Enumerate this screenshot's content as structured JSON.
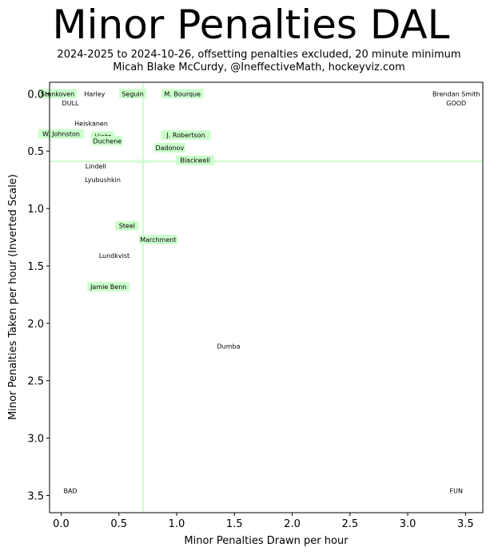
{
  "chart_data": {
    "type": "scatter",
    "title": "Minor Penalties DAL",
    "subtitle_lines": [
      "2024-2025 to 2024-10-26, offsetting penalties excluded, 20 minute minimum",
      "Micah Blake McCurdy, @IneffectiveMath, hockeyviz.com"
    ],
    "xlabel": "Minor Penalties Drawn per hour",
    "ylabel": "Minor Penalties Taken per hour (Inverted Scale)",
    "xlim": [
      -0.1,
      3.65
    ],
    "ylim": [
      3.65,
      -0.1
    ],
    "y_inverted": true,
    "xticks": [
      "0.0",
      "0.5",
      "1.0",
      "1.5",
      "2.0",
      "2.5",
      "3.0",
      "3.5"
    ],
    "yticks": [
      "0.0",
      "0.5",
      "1.0",
      "1.5",
      "2.0",
      "2.5",
      "3.0",
      "3.5"
    ],
    "team_reference": {
      "label": "DAL",
      "x": 0.71,
      "y": 0.59,
      "color": "#ccffcc"
    },
    "highlight_color": "#ccffcc",
    "points": [
      {
        "name": "Stankoven",
        "x": -0.03,
        "y": 0.0,
        "highlight": true
      },
      {
        "name": "Seguin",
        "x": 0.62,
        "y": 0.0,
        "highlight": true
      },
      {
        "name": "M. Bourque",
        "x": 1.05,
        "y": 0.0,
        "highlight": true
      },
      {
        "name": "Harley",
        "x": 0.29,
        "y": 0.0,
        "highlight": false
      },
      {
        "name": "Heiskanen",
        "x": 0.26,
        "y": 0.26,
        "highlight": false
      },
      {
        "name": "W. Johnston",
        "x": 0.0,
        "y": 0.35,
        "highlight": true
      },
      {
        "name": "Hintz",
        "x": 0.36,
        "y": 0.37,
        "highlight": true
      },
      {
        "name": "Duchene",
        "x": 0.4,
        "y": 0.41,
        "highlight": true
      },
      {
        "name": "J. Robertson",
        "x": 1.08,
        "y": 0.36,
        "highlight": true
      },
      {
        "name": "Dadonov",
        "x": 0.94,
        "y": 0.47,
        "highlight": true
      },
      {
        "name": "Blackwell",
        "x": 1.16,
        "y": 0.58,
        "highlight": true
      },
      {
        "name": "Lindell",
        "x": 0.3,
        "y": 0.63,
        "highlight": false
      },
      {
        "name": "Lyubushkin",
        "x": 0.36,
        "y": 0.75,
        "highlight": false
      },
      {
        "name": "Steel",
        "x": 0.57,
        "y": 1.15,
        "highlight": true
      },
      {
        "name": "Marchment",
        "x": 0.84,
        "y": 1.27,
        "highlight": true
      },
      {
        "name": "Lundkvist",
        "x": 0.46,
        "y": 1.41,
        "highlight": false
      },
      {
        "name": "Jamie Benn",
        "x": 0.41,
        "y": 1.68,
        "highlight": true
      },
      {
        "name": "Dumba",
        "x": 1.45,
        "y": 2.2,
        "highlight": false
      },
      {
        "name": "Brendan Smith",
        "x": 3.42,
        "y": 0.0,
        "highlight": false
      }
    ],
    "corner_labels": [
      {
        "text": "DULL",
        "x": 0.08,
        "y": 0.08
      },
      {
        "text": "GOOD",
        "x": 3.42,
        "y": 0.08
      },
      {
        "text": "BAD",
        "x": 0.08,
        "y": 3.46
      },
      {
        "text": "FUN",
        "x": 3.42,
        "y": 3.46
      }
    ]
  }
}
